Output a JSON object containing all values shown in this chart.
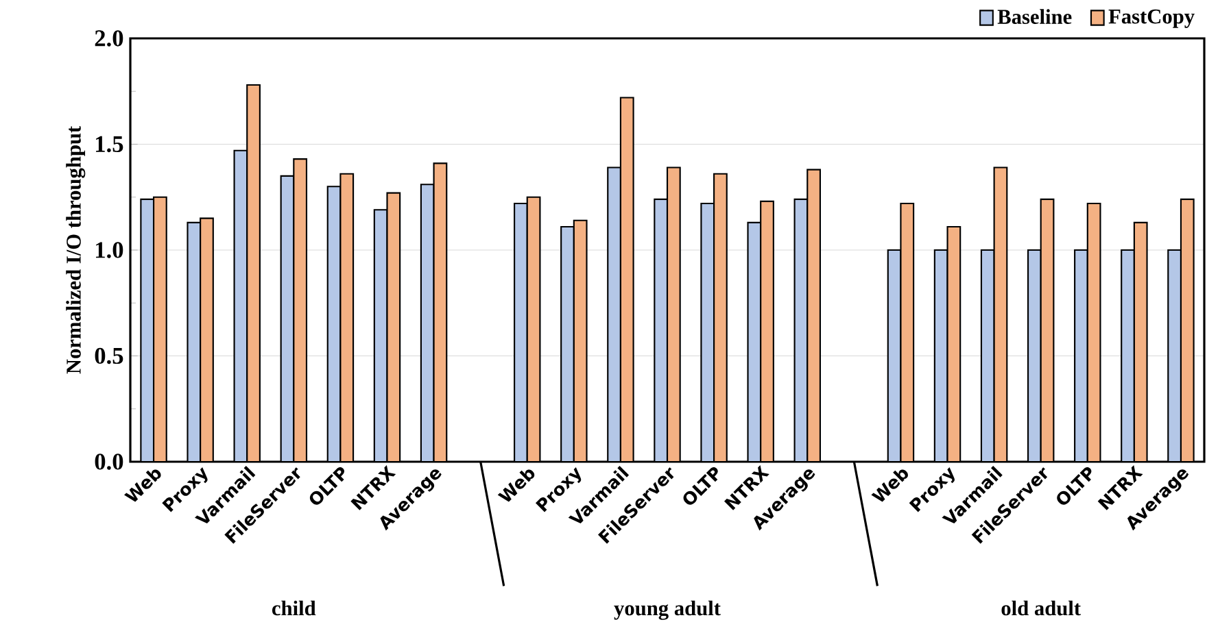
{
  "chart_data": {
    "type": "bar",
    "ylabel": "Normalized I/O throughput",
    "categories": [
      "Web",
      "Proxy",
      "Varmail",
      "FileServer",
      "OLTP",
      "NTRX",
      "Average",
      "Web",
      "Proxy",
      "Varmail",
      "FileServer",
      "OLTP",
      "NTRX",
      "Average",
      "Web",
      "Proxy",
      "Varmail",
      "FileServer",
      "OLTP",
      "NTRX",
      "Average"
    ],
    "series": [
      {
        "name": "Baseline",
        "color": "#b4c7e7",
        "values": [
          1.24,
          1.13,
          1.47,
          1.35,
          1.3,
          1.19,
          1.31,
          1.22,
          1.11,
          1.39,
          1.24,
          1.22,
          1.13,
          1.24,
          1.0,
          1.0,
          1.0,
          1.0,
          1.0,
          1.0,
          1.0
        ]
      },
      {
        "name": "FastCopy",
        "color": "#f4b183",
        "values": [
          1.25,
          1.15,
          1.78,
          1.43,
          1.36,
          1.27,
          1.41,
          1.25,
          1.14,
          1.72,
          1.39,
          1.36,
          1.23,
          1.38,
          1.22,
          1.11,
          1.39,
          1.24,
          1.22,
          1.13,
          1.24
        ]
      }
    ],
    "ylim": [
      0,
      2.0
    ],
    "yticks": [
      {
        "value": 0,
        "label": "0.0"
      },
      {
        "value": 0.5,
        "label": "0.5"
      },
      {
        "value": 1.0,
        "label": "1.0"
      },
      {
        "value": 1.5,
        "label": "1.5"
      },
      {
        "value": 2.0,
        "label": "2.0"
      }
    ],
    "annotations": [
      "child",
      "young adult",
      "old adult"
    ],
    "grid": "y",
    "legend": "top right"
  }
}
